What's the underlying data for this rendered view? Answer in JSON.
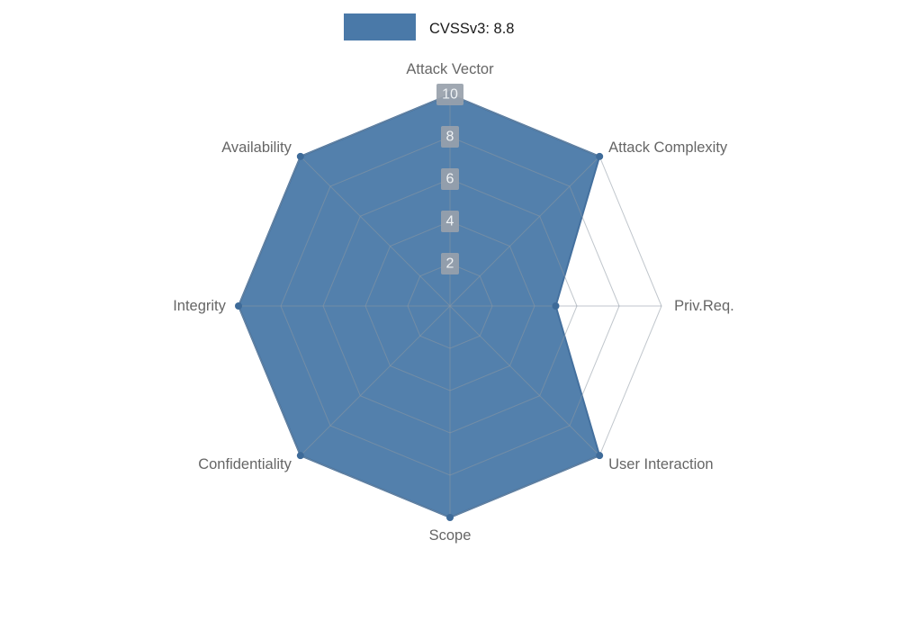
{
  "legend": {
    "label": "CVSSv3: 8.8"
  },
  "chart_data": {
    "type": "radar",
    "title": "",
    "legend_position": "top",
    "grid": true,
    "rmax": 10,
    "ticks": [
      2,
      4,
      6,
      8,
      10
    ],
    "categories": [
      "Attack Vector",
      "Attack Complexity",
      "Priv.Req.",
      "User Interaction",
      "Scope",
      "Confidentiality",
      "Integrity",
      "Availability"
    ],
    "series": [
      {
        "name": "CVSSv3: 8.8",
        "values": [
          10,
          10,
          5,
          10,
          10,
          10,
          10,
          10
        ]
      }
    ],
    "colors": {
      "fill": "#4a79a8",
      "fill_opacity": 0.95,
      "stroke": "#44709e",
      "point": "#3e6b99",
      "grid": "#8d98a3",
      "grid_opacity": 0.55,
      "axis_label": "#666666",
      "tick_text": "#eef2f5",
      "tick_backdrop": "#98a1ab",
      "legend_text": "#1a1a1a"
    }
  }
}
